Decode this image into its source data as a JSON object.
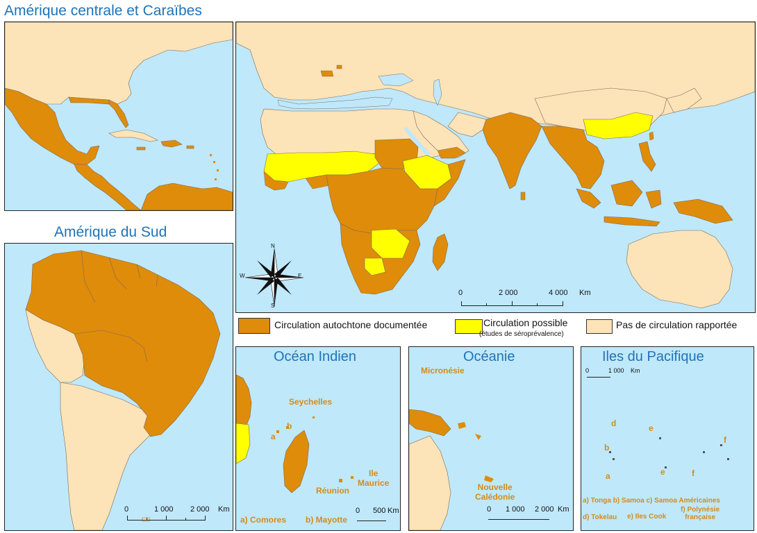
{
  "panels": {
    "central": {
      "title": "Amérique centrale et Caraïbes"
    },
    "south": {
      "title": "Amérique du Sud"
    },
    "indian": {
      "title": "Océan Indien"
    },
    "oceania": {
      "title": "Océanie"
    },
    "pacific": {
      "title": "Iles du Pacifique"
    }
  },
  "legend": {
    "documented": "Circulation autochtone documentée",
    "possible": "Circulation possible",
    "possible_note": "(études de séroprévalence)",
    "none": "Pas de circulation rapportée"
  },
  "colors": {
    "documented": "#df8c0a",
    "possible": "#ffff00",
    "none": "#fde3b8",
    "ocean": "#bfe8fb",
    "title": "#1f73b7",
    "label": "#d48b1a"
  },
  "compass": {
    "n": "N",
    "s": "S",
    "e": "E",
    "w": "W"
  },
  "scalebars": {
    "main": {
      "t0": "0",
      "t1": "2 000",
      "t2": "4 000",
      "unit": "Km"
    },
    "south": {
      "t0": "0",
      "t1": "1 000",
      "t2": "2 000",
      "unit": "Km"
    },
    "indian": {
      "t0": "0",
      "t1": "500",
      "unit": "Km"
    },
    "oceania": {
      "t0": "0",
      "t1": "1 000",
      "t2": "2 000",
      "unit": "Km"
    },
    "pacific": {
      "t0": "0",
      "t1": "1 000",
      "unit": "Km"
    }
  },
  "labels": {
    "indian": {
      "seychelles": "Seychelles",
      "a": "a",
      "b": "b",
      "maurice": "Ile\nMaurice",
      "reunion": "Réunion",
      "comores": "a) Comores",
      "mayotte": "b) Mayotte"
    },
    "oceania": {
      "micronesie": "Micronésie",
      "caledonie": "Nouvelle\nCalédonie"
    },
    "pacific": {
      "a": "a",
      "b": "b",
      "d": "d",
      "e1": "e",
      "e2": "e",
      "f1": "f",
      "f2": "f",
      "line1": "a) Tonga b) Samoa c) Samoa Américaines",
      "line2a": "d) Tokelau",
      "line2b": "e) Iles Cook",
      "line2c": "f) Polynésie\nfrançaise"
    }
  }
}
